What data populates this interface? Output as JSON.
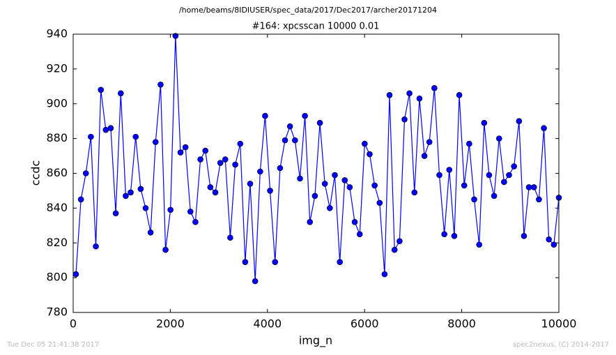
{
  "header": {
    "path": "/home/beams/8IDIUSER/spec_data/2017/Dec2017/archer20171204"
  },
  "chart_data": {
    "type": "line",
    "title": "#164: xpcsscan 10000 0.01",
    "xlabel": "img_n",
    "ylabel": "ccdc",
    "x": [
      57,
      160,
      262,
      364,
      467,
      570,
      672,
      774,
      877,
      980,
      1082,
      1184,
      1287,
      1390,
      1492,
      1594,
      1697,
      1800,
      1902,
      2004,
      2107,
      2210,
      2312,
      2414,
      2517,
      2620,
      2722,
      2824,
      2927,
      3030,
      3132,
      3234,
      3337,
      3440,
      3542,
      3644,
      3747,
      3850,
      3952,
      4054,
      4157,
      4260,
      4362,
      4464,
      4567,
      4670,
      4772,
      4874,
      4977,
      5080,
      5182,
      5284,
      5387,
      5490,
      5592,
      5694,
      5797,
      5900,
      6002,
      6104,
      6207,
      6310,
      6412,
      6514,
      6617,
      6720,
      6822,
      6924,
      7027,
      7130,
      7232,
      7334,
      7437,
      7540,
      7642,
      7744,
      7847,
      7950,
      8052,
      8154,
      8257,
      8360,
      8462,
      8564,
      8667,
      8770,
      8872,
      8974,
      9077,
      9180,
      9282,
      9384,
      9487,
      9590,
      9692,
      9794,
      9897,
      10000
    ],
    "series": [
      {
        "name": "ccdc",
        "color": "#0000ff",
        "values": [
          802,
          845,
          860,
          881,
          818,
          908,
          885,
          886,
          837,
          906,
          847,
          849,
          881,
          851,
          840,
          826,
          878,
          911,
          816,
          839,
          939,
          872,
          875,
          838,
          832,
          868,
          873,
          852,
          849,
          866,
          868,
          823,
          865,
          877,
          809,
          854,
          798,
          861,
          893,
          850,
          809,
          863,
          879,
          887,
          879,
          857,
          893,
          832,
          847,
          889,
          854,
          840,
          859,
          809,
          856,
          852,
          832,
          825,
          877,
          871,
          853,
          843,
          802,
          905,
          816,
          821,
          891,
          906,
          849,
          903,
          870,
          878,
          909,
          859,
          825,
          862,
          824,
          905,
          853,
          877,
          845,
          819,
          889,
          859,
          847,
          880,
          855,
          859,
          864,
          890,
          824,
          852,
          852,
          845,
          886,
          822,
          819,
          846
        ]
      }
    ],
    "xlim": [
      0,
      10000
    ],
    "xticks": [
      0,
      2000,
      4000,
      6000,
      8000,
      10000
    ],
    "ylim": [
      780,
      940
    ],
    "yticks": [
      780,
      800,
      820,
      840,
      860,
      880,
      900,
      920,
      940
    ]
  },
  "footer": {
    "left": "Tue Dec 05 21:41:38 2017",
    "right": "spec2nexus, (C) 2014-2017"
  }
}
